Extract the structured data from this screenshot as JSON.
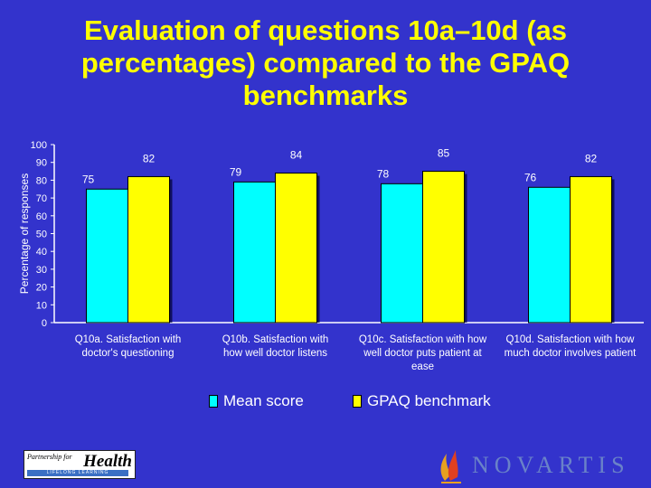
{
  "title": "Evaluation of questions 10a–10d (as percentages) compared to the GPAQ benchmarks",
  "colors": {
    "background": "#3333cc",
    "title": "#ffff00",
    "mean": "#00ffff",
    "benchmark": "#ffff00"
  },
  "legend": {
    "mean_label": "Mean score",
    "benchmark_label": "GPAQ benchmark"
  },
  "logos": {
    "left_top": "Partnership for",
    "left_main": "Health",
    "left_band": "LIFELONG LEARNING",
    "right_word": "NOVARTIS"
  },
  "chart_data": {
    "type": "bar",
    "ylabel": "Percentage of responses",
    "ylim": [
      0,
      100
    ],
    "yticks": [
      0,
      10,
      20,
      30,
      40,
      50,
      60,
      70,
      80,
      90,
      100
    ],
    "categories": [
      [
        "Q10a. Satisfaction with",
        "doctor's questioning"
      ],
      [
        "Q10b. Satisfaction with",
        "how well doctor listens"
      ],
      [
        "Q10c. Satisfaction with how",
        "well doctor puts patient at",
        "ease"
      ],
      [
        "Q10d. Satisfaction with how",
        "much doctor involves patient"
      ]
    ],
    "series": [
      {
        "name": "Mean score",
        "values": [
          75,
          79,
          78,
          76
        ]
      },
      {
        "name": "GPAQ benchmark",
        "values": [
          82,
          84,
          85,
          82
        ]
      }
    ]
  }
}
